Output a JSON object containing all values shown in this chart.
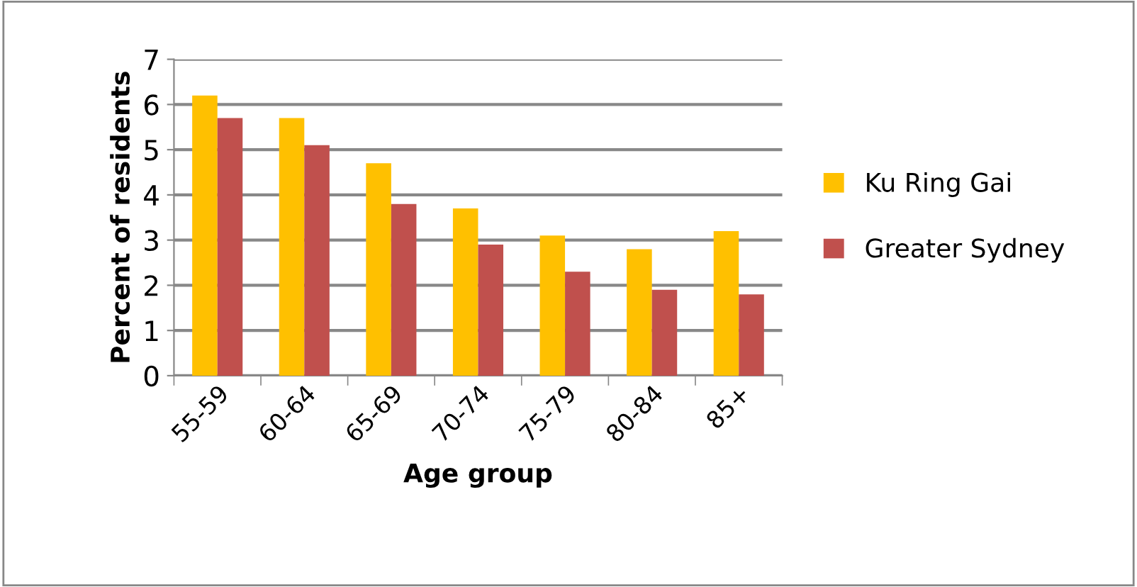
{
  "chart_data": {
    "type": "bar",
    "xlabel": "Age group",
    "ylabel": "Percent of residents",
    "categories": [
      "55-59",
      "60-64",
      "65-69",
      "70-74",
      "75-79",
      "80-84",
      "85+"
    ],
    "series": [
      {
        "name": "Ku Ring Gai",
        "color": "#ffc000",
        "values": [
          6.2,
          5.7,
          4.7,
          3.7,
          3.1,
          2.8,
          3.2
        ]
      },
      {
        "name": "Greater Sydney",
        "color": "#c0504d",
        "values": [
          5.7,
          5.1,
          3.8,
          2.9,
          2.3,
          1.9,
          1.8
        ]
      }
    ],
    "ylim": [
      0,
      7
    ],
    "yticks": [
      0,
      1,
      2,
      3,
      4,
      5,
      6,
      7
    ],
    "grid": "y",
    "legend": "right"
  }
}
